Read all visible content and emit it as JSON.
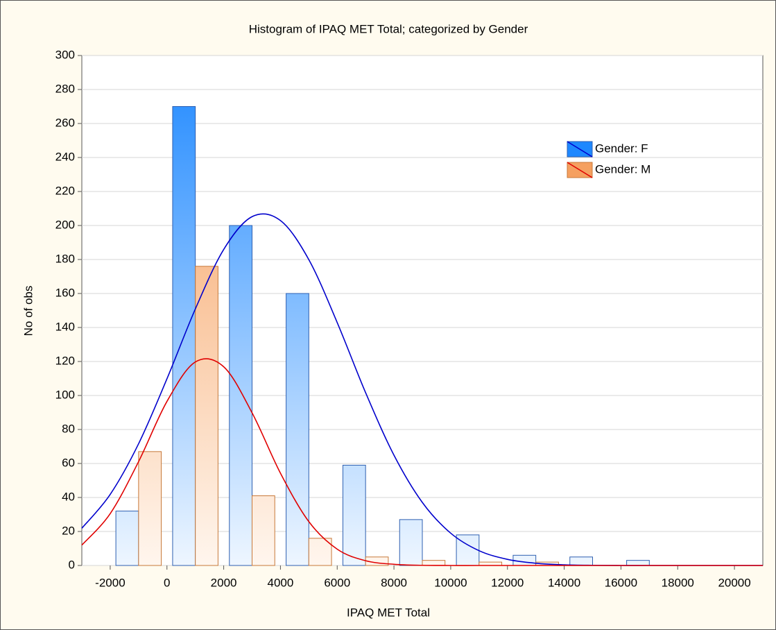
{
  "chart_data": {
    "type": "histogram",
    "title": "Histogram of IPAQ MET Total; categorized by Gender",
    "x_label": "IPAQ MET Total",
    "y_label": "No of obs",
    "bins": [
      -2000,
      0,
      2000,
      4000,
      6000,
      8000,
      10000,
      12000,
      14000,
      16000,
      18000,
      20000
    ],
    "series": [
      {
        "name": "Gender: F",
        "color": "#1e88ff",
        "values": [
          32,
          270,
          200,
          160,
          59,
          27,
          18,
          6,
          5,
          3,
          0
        ],
        "fit_color": "#0000cc",
        "fit": [
          21.9,
          41.8,
          71.6,
          109.8,
          150.9,
          185.9,
          205.2,
          202.9,
          179.9,
          142.9,
          101.7,
          64.9,
          37.1,
          19.0,
          8.7,
          3.6,
          1.3,
          0.4,
          0.1,
          0,
          0,
          0,
          0,
          0,
          0
        ]
      },
      {
        "name": "Gender: M",
        "color": "#f5a060",
        "values": [
          67,
          176,
          41,
          16,
          5,
          3,
          2,
          2,
          0,
          0,
          0
        ],
        "fit_color": "#e00000",
        "fit": [
          12.0,
          30.5,
          61.1,
          96.5,
          119.7,
          116.9,
          89.8,
          54.3,
          25.8,
          9.6,
          2.8,
          0.7,
          0.1,
          0,
          0,
          0,
          0,
          0,
          0,
          0,
          0,
          0,
          0,
          0,
          0
        ]
      }
    ],
    "fit_x": [
      -3000,
      -2000,
      -1000,
      0,
      1000,
      2000,
      3000,
      4000,
      5000,
      6000,
      7000,
      8000,
      9000,
      10000,
      11000,
      12000,
      13000,
      14000,
      15000,
      16000,
      17000,
      18000,
      19000,
      20000,
      21000
    ],
    "xlim": [
      -3000,
      21000
    ],
    "xticks": [
      -2000,
      0,
      2000,
      4000,
      6000,
      8000,
      10000,
      12000,
      14000,
      16000,
      18000,
      20000
    ],
    "ylim": [
      0,
      300
    ],
    "yticks": [
      0,
      20,
      40,
      60,
      80,
      100,
      120,
      140,
      160,
      180,
      200,
      220,
      240,
      260,
      280,
      300
    ],
    "grid": true,
    "legend": "upper right"
  }
}
